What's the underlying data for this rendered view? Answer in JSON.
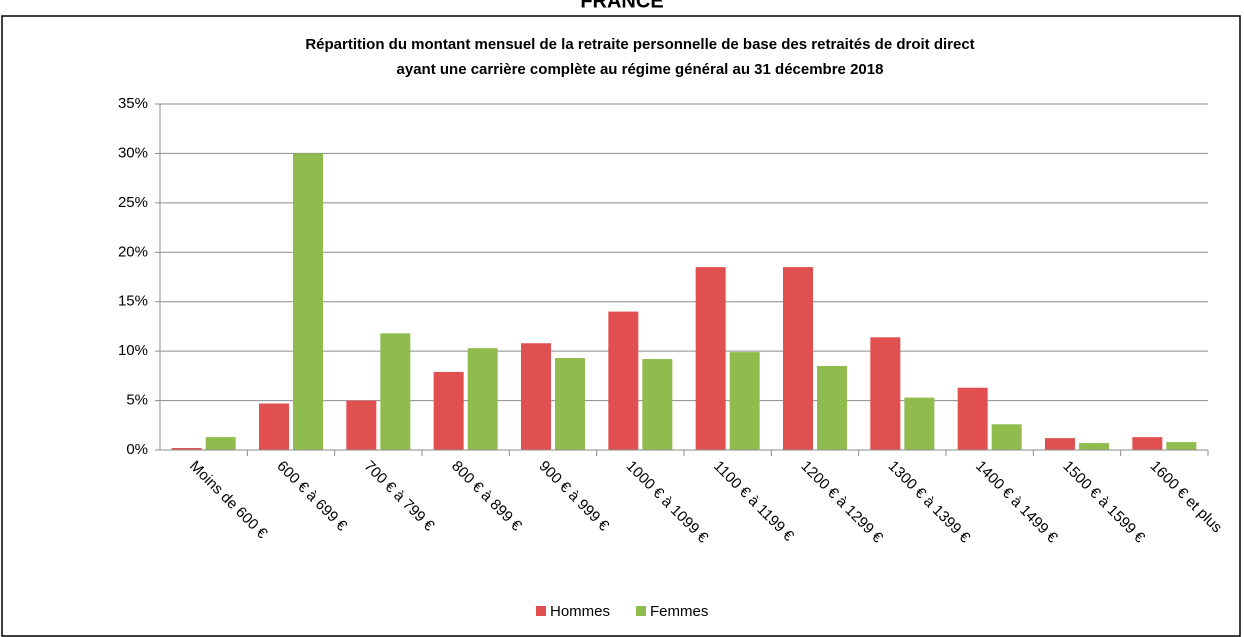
{
  "chart_data": {
    "type": "bar",
    "heading": "FRANCE",
    "title": [
      "Répartition du montant mensuel de la retraite personnelle de base des retraités de droit direct",
      "ayant une carrière complète au régime général au 31 décembre 2018"
    ],
    "categories": [
      "Moins de 600 €",
      "600 € à 699 €",
      "700 € à 799 €",
      "800 € à 899 €",
      "900 € à 999 €",
      "1000 € à 1099 €",
      "1100 € à 1199 €",
      "1200 € à 1299 €",
      "1300 € à 1399 €",
      "1400 € à 1499 €",
      "1500 € à 1599 €",
      "1600 € et plus"
    ],
    "series": [
      {
        "name": "Hommes",
        "color": "#e05050",
        "values": [
          0.2,
          4.7,
          5.0,
          7.9,
          10.8,
          14.0,
          18.5,
          18.5,
          11.4,
          6.3,
          1.2,
          1.3
        ]
      },
      {
        "name": "Femmes",
        "color": "#8fbc4c",
        "values": [
          1.3,
          30.0,
          11.8,
          10.3,
          9.3,
          9.2,
          9.9,
          8.5,
          5.3,
          2.6,
          0.7,
          0.8
        ]
      }
    ],
    "ylim": [
      0,
      35
    ],
    "yticks": [
      {
        "value": 0,
        "label": "0%"
      },
      {
        "value": 5,
        "label": "5%"
      },
      {
        "value": 10,
        "label": "10%"
      },
      {
        "value": 15,
        "label": "15%"
      },
      {
        "value": 20,
        "label": "20%"
      },
      {
        "value": 25,
        "label": "25%"
      },
      {
        "value": 30,
        "label": "30%"
      },
      {
        "value": 35,
        "label": "35%"
      }
    ],
    "grid": true,
    "legend": "bottom"
  }
}
